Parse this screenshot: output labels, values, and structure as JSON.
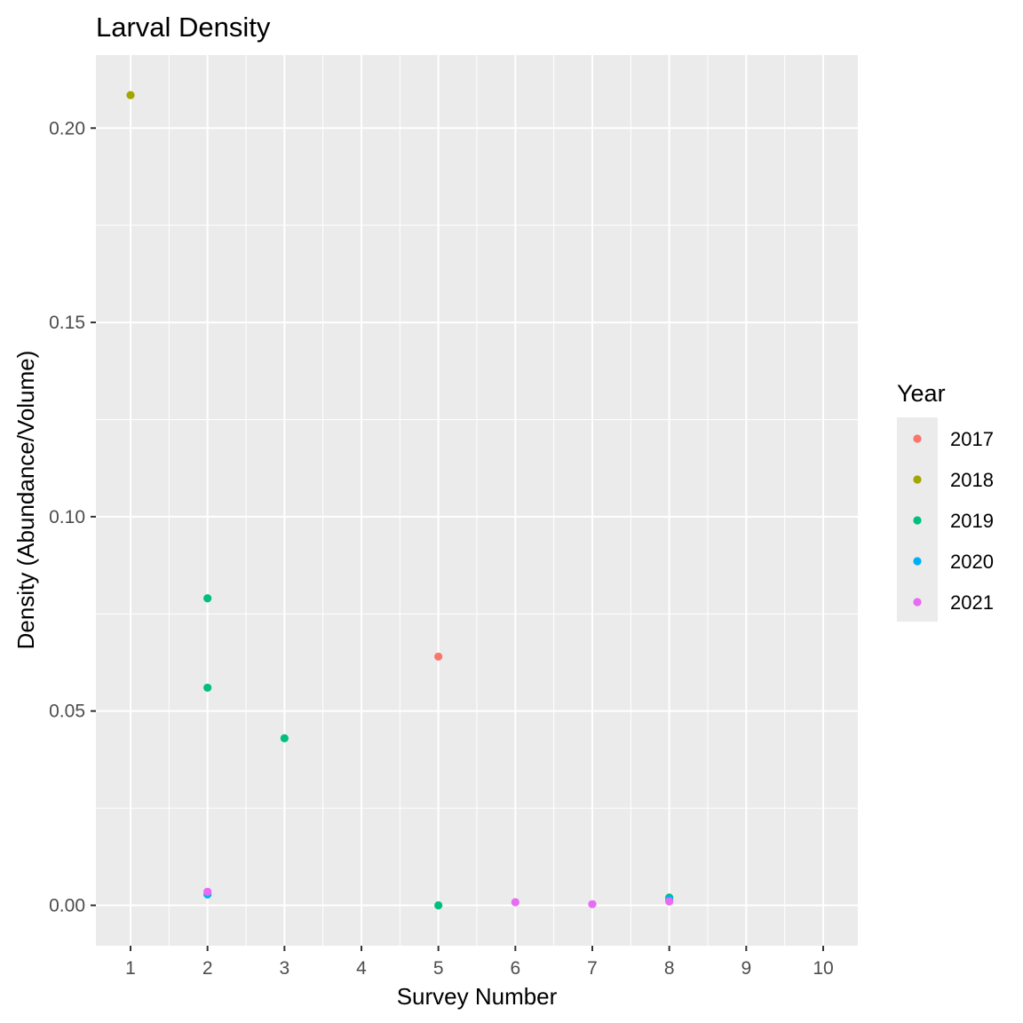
{
  "chart_data": {
    "type": "scatter",
    "title": "Larval Density",
    "xlabel": "Survey Number",
    "ylabel": "Density (Abundance/Volume)",
    "xlim": [
      0.55,
      10.45
    ],
    "ylim": [
      -0.0104,
      0.2188
    ],
    "x_ticks": [
      1,
      2,
      3,
      4,
      5,
      6,
      7,
      8,
      9,
      10
    ],
    "y_ticks": [
      0.0,
      0.05,
      0.1,
      0.15,
      0.2
    ],
    "y_tick_labels": [
      "0.00",
      "0.05",
      "0.10",
      "0.15",
      "0.20"
    ],
    "grid": true,
    "legend": {
      "title": "Year",
      "position": "right"
    },
    "series": [
      {
        "name": "2017",
        "color": "#F8766D",
        "points": [
          {
            "x": 5,
            "y": 0.064
          }
        ]
      },
      {
        "name": "2018",
        "color": "#A3A500",
        "points": [
          {
            "x": 1,
            "y": 0.2085
          }
        ]
      },
      {
        "name": "2019",
        "color": "#00BF7D",
        "points": [
          {
            "x": 2,
            "y": 0.079
          },
          {
            "x": 2,
            "y": 0.056
          },
          {
            "x": 3,
            "y": 0.043
          },
          {
            "x": 5,
            "y": 0.0
          },
          {
            "x": 8,
            "y": 0.002
          }
        ]
      },
      {
        "name": "2020",
        "color": "#00B0F6",
        "points": [
          {
            "x": 2,
            "y": 0.0028
          },
          {
            "x": 8,
            "y": 0.0015
          }
        ]
      },
      {
        "name": "2021",
        "color": "#E76BF3",
        "points": [
          {
            "x": 2,
            "y": 0.0035
          },
          {
            "x": 6,
            "y": 0.0008
          },
          {
            "x": 7,
            "y": 0.0003
          },
          {
            "x": 8,
            "y": 0.001
          }
        ]
      }
    ]
  }
}
